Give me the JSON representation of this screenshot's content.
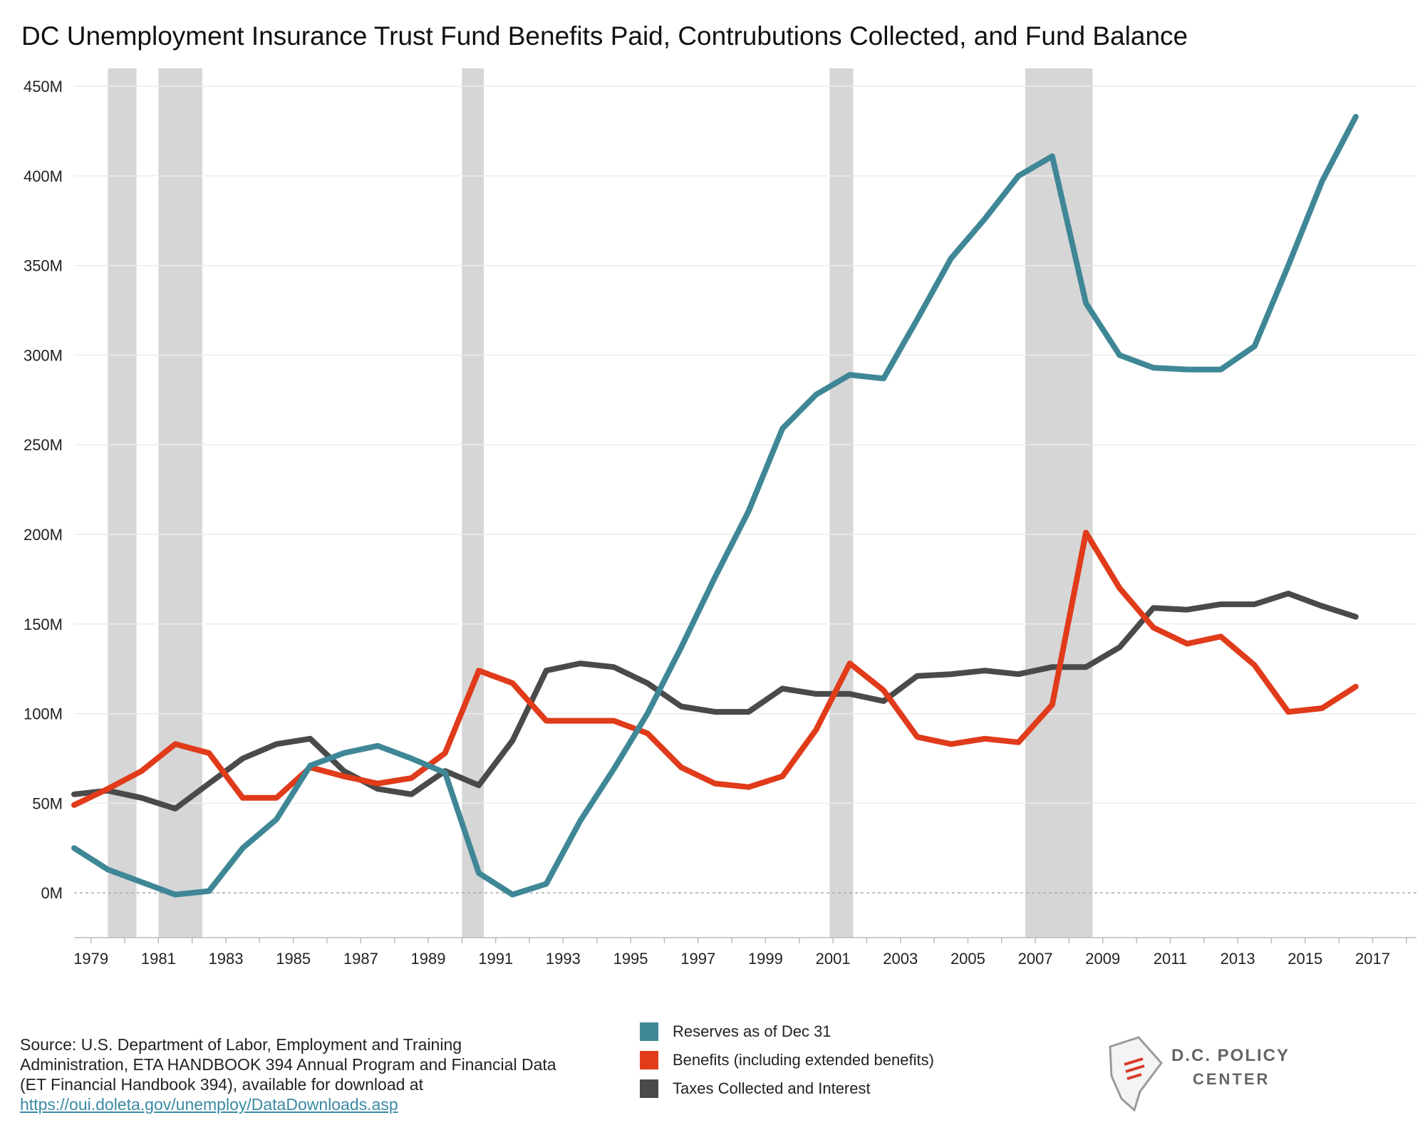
{
  "title": "DC Unemployment Insurance Trust Fund Benefits Paid, Contrubutions Collected, and Fund Balance",
  "source": {
    "text": "Source: U.S. Department of Labor, Employment and Training Administration, ETA HANDBOOK 394 Annual Program and Financial Data (ET Financial Handbook 394), available for download at",
    "url": "https://oui.doleta.gov/unemploy/DataDownloads.asp"
  },
  "logo": {
    "line1": "D.C. POLICY",
    "line2": "CENTER"
  },
  "chart_data": {
    "type": "line",
    "title": "DC Unemployment Insurance Trust Fund Benefits Paid, Contrubutions Collected, and Fund Balance",
    "xlabel": "",
    "ylabel": "",
    "xlim": [
      1978.5,
      2018.3
    ],
    "ylim": [
      -25,
      460
    ],
    "y_ticks": [
      0,
      50,
      100,
      150,
      200,
      250,
      300,
      350,
      400,
      450
    ],
    "y_tick_labels": [
      "0M",
      "50M",
      "100M",
      "150M",
      "200M",
      "250M",
      "300M",
      "350M",
      "400M",
      "450M"
    ],
    "x_ticks": [
      1979,
      1981,
      1983,
      1985,
      1987,
      1989,
      1991,
      1993,
      1995,
      1997,
      1999,
      2001,
      2003,
      2005,
      2007,
      2009,
      2011,
      2013,
      2015,
      2017
    ],
    "grid": true,
    "legend_position": "bottom",
    "recession_bands": [
      [
        1979.5,
        1980.35
      ],
      [
        1981.0,
        1982.3
      ],
      [
        1990.0,
        1990.65
      ],
      [
        2000.9,
        2001.6
      ],
      [
        2006.7,
        2008.7
      ]
    ],
    "x": [
      1978.5,
      1979.5,
      1980.5,
      1981.5,
      1982.5,
      1983.5,
      1984.5,
      1985.5,
      1986.5,
      1987.5,
      1988.5,
      1989.5,
      1990.5,
      1991.5,
      1992.5,
      1993.5,
      1994.5,
      1995.5,
      1996.5,
      1997.5,
      1998.5,
      1999.5,
      2000.5,
      2001.5,
      2002.5,
      2003.5,
      2004.5,
      2005.5,
      2006.5,
      2007.5,
      2008.5,
      2009.5,
      2010.5,
      2011.5,
      2012.5,
      2013.5,
      2014.5,
      2015.5,
      2016.5
    ],
    "series": [
      {
        "name": "Reserves as of Dec 31",
        "color": "#3f8796",
        "values": [
          25,
          13,
          6,
          -1,
          1,
          25,
          41,
          71,
          78,
          82,
          75,
          67,
          11,
          -1,
          5,
          40,
          69,
          100,
          137,
          176,
          213,
          259,
          278,
          289,
          287,
          320,
          354,
          376,
          400,
          411,
          329,
          300,
          293,
          292,
          292,
          305,
          350,
          397,
          433
        ]
      },
      {
        "name": "Benefits (including extended benefits)",
        "color": "#e03b1a",
        "values": [
          49,
          58,
          68,
          83,
          78,
          53,
          53,
          70,
          65,
          61,
          64,
          78,
          124,
          117,
          96,
          96,
          96,
          89,
          70,
          61,
          59,
          65,
          91,
          128,
          113,
          87,
          83,
          86,
          84,
          105,
          201,
          170,
          148,
          139,
          143,
          127,
          101,
          103,
          115
        ]
      },
      {
        "name": "Taxes Collected and Interest",
        "color": "#4a4a4a",
        "values": [
          55,
          57,
          53,
          47,
          61,
          75,
          83,
          86,
          68,
          58,
          55,
          68,
          60,
          85,
          124,
          128,
          126,
          117,
          104,
          101,
          101,
          114,
          111,
          111,
          107,
          121,
          122,
          124,
          122,
          126,
          126,
          137,
          159,
          158,
          161,
          161,
          167,
          160,
          154
        ]
      }
    ]
  }
}
